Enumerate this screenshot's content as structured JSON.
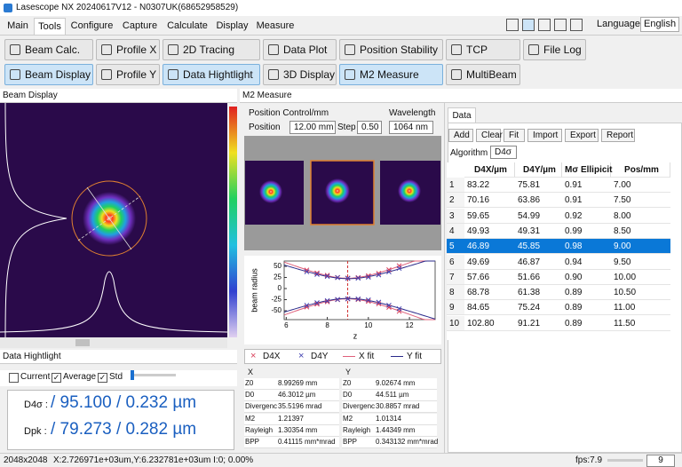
{
  "title_bar": {
    "title": "Lasescope NX 20240617V12 - N0307UK(68652958529)"
  },
  "menu": {
    "tabs": [
      "Main",
      "Tools",
      "Configure",
      "Capture",
      "Calculate",
      "Display",
      "Measure"
    ],
    "active": 1,
    "language_label": "Language",
    "language": "English"
  },
  "toolbar": {
    "rows": [
      [
        "Beam Calc.",
        "Profile X",
        "2D Tracing",
        "Data Plot",
        "Position Stability",
        "TCP",
        "File Log"
      ],
      [
        "Beam Display",
        "Profile Y",
        "Data Hightlight",
        "3D Display",
        "M2 Measure",
        "MultiBeam"
      ]
    ]
  },
  "beam_display": {
    "title": "Beam Display"
  },
  "data_highlight": {
    "title": "Data Hightlight",
    "checkboxes": [
      {
        "label": "Current",
        "checked": false
      },
      {
        "label": "Average",
        "checked": true
      },
      {
        "label": "Std",
        "checked": true
      }
    ],
    "rows": [
      {
        "label": "D4σ :",
        "value": "/ 95.100 / 0.232 µm"
      },
      {
        "label": "Dpk :",
        "value": "/ 79.273 / 0.282 µm"
      }
    ]
  },
  "m2_measure": {
    "title": "M2 Measure",
    "position_control": "Position Control/mm",
    "position_label": "Position",
    "position_value": "12.00 mm",
    "step_label": "Step",
    "step_value": "0.50",
    "wavelength_label": "Wavelength",
    "wavelength_value": "1064 nm",
    "plot": {
      "y_label": "beam radius",
      "x_label": "z",
      "xticks": [
        6,
        8,
        10,
        12
      ],
      "yticks": [
        50,
        25,
        0,
        -25,
        -50
      ],
      "xlim": [
        5.9,
        13.25
      ],
      "ylim": [
        -70,
        62
      ]
    },
    "legend": [
      {
        "name": "D4X",
        "color": "#d9405a"
      },
      {
        "name": "D4Y",
        "color": "#4040b0"
      },
      {
        "name": "X fit",
        "color": "#e0607a"
      },
      {
        "name": "Y fit",
        "color": "#2a2a8a"
      }
    ],
    "fit_tables": [
      {
        "header": "X",
        "rows": [
          [
            "Z0",
            "8.99269 mm"
          ],
          [
            "D0",
            "46.3012 µm"
          ],
          [
            "Divergenc",
            "35.5196 mrad"
          ],
          [
            "M2",
            "1.21397"
          ],
          [
            "Rayleigh",
            "1.30354 mm"
          ],
          [
            "BPP",
            "0.41115 mm*mrad"
          ]
        ]
      },
      {
        "header": "Y",
        "rows": [
          [
            "Z0",
            "9.02674 mm"
          ],
          [
            "D0",
            "44.511 µm"
          ],
          [
            "Divergenc",
            "30.8857 mrad"
          ],
          [
            "M2",
            "1.01314"
          ],
          [
            "Rayleigh",
            "1.44349 mm"
          ],
          [
            "BPP",
            "0.343132 mm*mrad"
          ]
        ]
      }
    ]
  },
  "data_panel": {
    "tab": "Data",
    "buttons": [
      "Add",
      "Clear",
      "Fit",
      "Import",
      "Export",
      "Report"
    ],
    "algorithm_label": "Algorithm",
    "algorithm": "D4σ",
    "table": {
      "header": [
        "D4X/µm",
        "D4Y/µm",
        "Mσ Ellipicit",
        "Pos/mm"
      ],
      "selected_row": 4,
      "rows": [
        [
          "1",
          "83.22",
          "75.81",
          "0.91",
          "7.00"
        ],
        [
          "2",
          "70.16",
          "63.86",
          "0.91",
          "7.50"
        ],
        [
          "3",
          "59.65",
          "54.99",
          "0.92",
          "8.00"
        ],
        [
          "4",
          "49.93",
          "49.31",
          "0.99",
          "8.50"
        ],
        [
          "5",
          "46.89",
          "45.85",
          "0.98",
          "9.00"
        ],
        [
          "6",
          "49.69",
          "46.87",
          "0.94",
          "9.50"
        ],
        [
          "7",
          "57.66",
          "51.66",
          "0.90",
          "10.00"
        ],
        [
          "8",
          "68.78",
          "61.38",
          "0.89",
          "10.50"
        ],
        [
          "9",
          "84.65",
          "75.24",
          "0.89",
          "11.00"
        ],
        [
          "10",
          "102.80",
          "91.21",
          "0.89",
          "11.50"
        ]
      ]
    }
  },
  "status": {
    "size": "2048x2048",
    "coords": "X:2.726971e+03um,Y:6.232781e+03um I:0; 0.00%",
    "fps": "fps:7.9",
    "count": "9"
  }
}
